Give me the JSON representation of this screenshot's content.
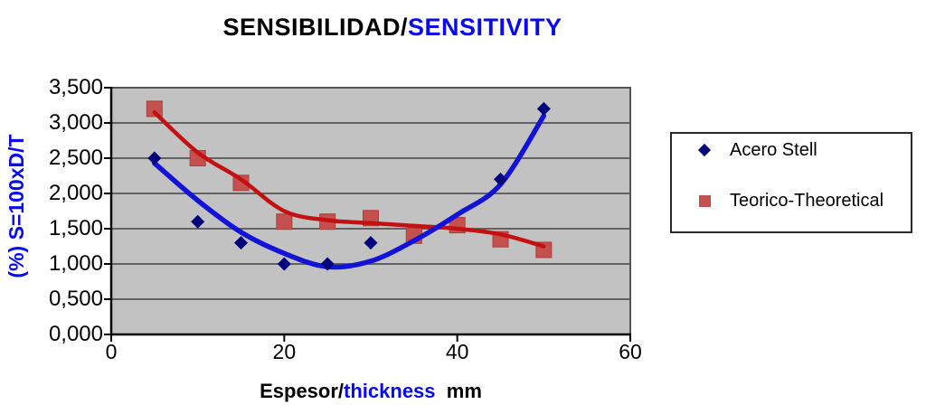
{
  "chart_data": {
    "type": "scatter",
    "title": {
      "part1": "SENSIBILIDAD/",
      "part2": "SENSITIVITY"
    },
    "axis_titles": {
      "y": "(%) S=100xD/T",
      "x_part1": "Espesor/",
      "x_part2": "thickness",
      "x_part3": "  mm"
    },
    "xlim": [
      0,
      60
    ],
    "ylim": [
      0,
      3500
    ],
    "x_ticks": [
      {
        "value": 0,
        "label": "0"
      },
      {
        "value": 20,
        "label": "20"
      },
      {
        "value": 40,
        "label": "40"
      },
      {
        "value": 60,
        "label": "60"
      }
    ],
    "y_ticks": [
      {
        "value": 0,
        "label": "0,000"
      },
      {
        "value": 500,
        "label": "0,500"
      },
      {
        "value": 1000,
        "label": "1,000"
      },
      {
        "value": 1500,
        "label": "1,500"
      },
      {
        "value": 2000,
        "label": "2,000"
      },
      {
        "value": 2500,
        "label": "2,500"
      },
      {
        "value": 3000,
        "label": "3,000"
      },
      {
        "value": 3500,
        "label": "3,500"
      }
    ],
    "grid": true,
    "legend_position": "right",
    "series": [
      {
        "id": "acero-stell",
        "name": "Acero Stell",
        "marker": "diamond",
        "marker_color": "#00007d",
        "line_color": "#1313d7",
        "points": [
          [
            5,
            2500
          ],
          [
            10,
            1600
          ],
          [
            15,
            1300
          ],
          [
            20,
            1000
          ],
          [
            25,
            1000
          ],
          [
            30,
            1300
          ],
          [
            45,
            2200
          ],
          [
            50,
            3200
          ]
        ],
        "trend": [
          [
            5,
            2430
          ],
          [
            10,
            1900
          ],
          [
            15,
            1450
          ],
          [
            20,
            1150
          ],
          [
            25,
            960
          ],
          [
            30,
            1040
          ],
          [
            35,
            1330
          ],
          [
            40,
            1700
          ],
          [
            45,
            2130
          ],
          [
            50,
            3100
          ]
        ]
      },
      {
        "id": "teorico-theoretical",
        "name": "Teorico-Theoretical",
        "marker": "square",
        "marker_color": "#c4514e",
        "line_color": "#c31111",
        "points": [
          [
            5,
            3200
          ],
          [
            10,
            2500
          ],
          [
            15,
            2150
          ],
          [
            20,
            1600
          ],
          [
            25,
            1600
          ],
          [
            30,
            1650
          ],
          [
            35,
            1400
          ],
          [
            40,
            1550
          ],
          [
            45,
            1350
          ],
          [
            50,
            1200
          ]
        ],
        "trend": [
          [
            5,
            3150
          ],
          [
            10,
            2580
          ],
          [
            15,
            2200
          ],
          [
            20,
            1750
          ],
          [
            25,
            1620
          ],
          [
            30,
            1580
          ],
          [
            35,
            1540
          ],
          [
            40,
            1500
          ],
          [
            45,
            1420
          ],
          [
            50,
            1250
          ]
        ]
      }
    ],
    "colors": {
      "page_bg": "#ffffff",
      "plot_bg": "#c2c2c2",
      "grid": "#555555",
      "axis": "#000000",
      "accent_blue": "#0909f0",
      "text": "#000000"
    }
  }
}
